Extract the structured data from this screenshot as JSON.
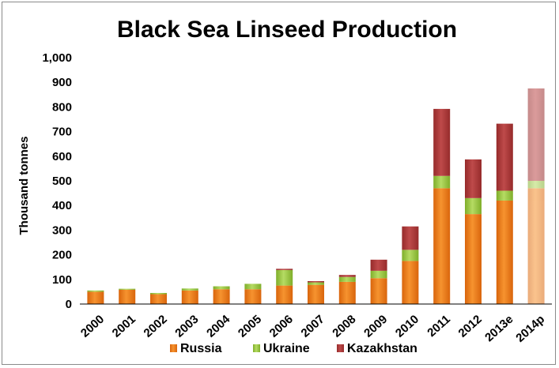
{
  "chart_data": {
    "type": "bar",
    "stacked": true,
    "title": "Black Sea Linseed Production",
    "ylabel": "Thousand tonnes",
    "xlabel": "",
    "ylim": [
      0,
      1000
    ],
    "yticks": [
      0,
      100,
      200,
      300,
      400,
      500,
      600,
      700,
      800,
      900,
      1000
    ],
    "ytick_labels": [
      "0",
      "100",
      "200",
      "300",
      "400",
      "500",
      "600",
      "700",
      "800",
      "900",
      "1,000"
    ],
    "categories": [
      "2000",
      "2001",
      "2002",
      "2003",
      "2004",
      "2005",
      "2006",
      "2007",
      "2008",
      "2009",
      "2010",
      "2011",
      "2012",
      "2013e",
      "2014p"
    ],
    "faded_categories": [
      "2014p"
    ],
    "legend_position": "bottom",
    "grid": false,
    "series": [
      {
        "name": "Russia",
        "color": "#F07D1A",
        "values": [
          50,
          58,
          40,
          55,
          60,
          60,
          75,
          78,
          90,
          105,
          175,
          470,
          365,
          420,
          470
        ]
      },
      {
        "name": "Ukraine",
        "color": "#9BC940",
        "values": [
          5,
          4,
          5,
          8,
          12,
          22,
          63,
          10,
          20,
          30,
          45,
          50,
          65,
          40,
          30
        ]
      },
      {
        "name": "Kazakhstan",
        "color": "#B03A3A",
        "values": [
          0,
          0,
          0,
          0,
          0,
          0,
          5,
          5,
          8,
          45,
          95,
          272,
          157,
          272,
          375
        ]
      }
    ]
  }
}
